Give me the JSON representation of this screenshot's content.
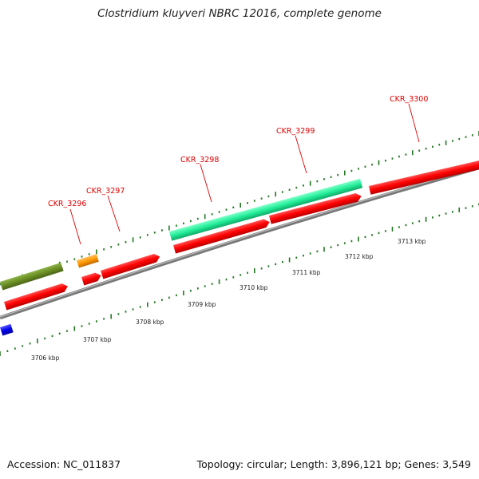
{
  "header": {
    "title": "Clostridium kluyveri NBRC 12016, complete genome"
  },
  "footer": {
    "accession": "Accession: NC_011837",
    "stats": "Topology: circular; Length: 3,896,121 bp; Genes: 3,549"
  },
  "scale": {
    "ticks": [
      "3706 kbp",
      "3707 kbp",
      "3708 kbp",
      "3709 kbp",
      "3710 kbp",
      "3711 kbp",
      "3712 kbp",
      "3713 kbp"
    ]
  },
  "genes": [
    {
      "name": "CKR_3296"
    },
    {
      "name": "CKR_3297"
    },
    {
      "name": "CKR_3298"
    },
    {
      "name": "CKR_3299"
    },
    {
      "name": "CKR_3300"
    }
  ],
  "colors": {
    "cds": "#ff0000",
    "cds_dark": "#aa0000",
    "rrna": "#22ee99",
    "trna": "#ff9900",
    "gene": "#6b8e23",
    "other": "#0000ee",
    "backbone": "#888888",
    "tick": "#227722",
    "label": "#e00000"
  }
}
